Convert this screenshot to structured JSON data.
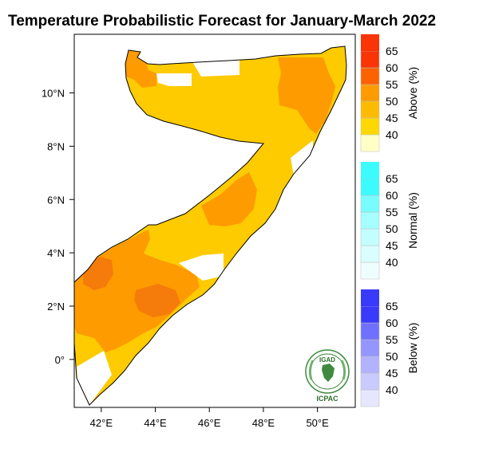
{
  "title": "Temperature Probabilistic Forecast for January-March 2022",
  "x_axis": {
    "ticks": [
      {
        "value": 42,
        "label": "42°E"
      },
      {
        "value": 44,
        "label": "44°E"
      },
      {
        "value": 46,
        "label": "46°E"
      },
      {
        "value": 48,
        "label": "48°E"
      },
      {
        "value": 50,
        "label": "50°E"
      }
    ],
    "range": [
      41.0,
      51.4
    ]
  },
  "y_axis": {
    "ticks": [
      {
        "value": 0,
        "label": "0°"
      },
      {
        "value": 2,
        "label": "2°N"
      },
      {
        "value": 4,
        "label": "4°N"
      },
      {
        "value": 6,
        "label": "6°N"
      },
      {
        "value": 8,
        "label": "8°N"
      },
      {
        "value": 10,
        "label": "10°N"
      }
    ],
    "range": [
      -1.8,
      12.2
    ]
  },
  "legend": {
    "scales": [
      {
        "title": "Above (%)",
        "labels": [
          "40",
          "45",
          "50",
          "55",
          "60",
          "65"
        ],
        "colors": [
          "#ffffc6",
          "#fed800",
          "#fdbb00",
          "#fd9b00",
          "#fc6200",
          "#f93406"
        ]
      },
      {
        "title": "Normal (%)",
        "labels": [
          "40",
          "45",
          "50",
          "55",
          "60",
          "65"
        ],
        "colors": [
          "#eefeff",
          "#dafeff",
          "#c3feff",
          "#a5feff",
          "#78fcff",
          "#3cfbfe"
        ]
      },
      {
        "title": "Below (%)",
        "labels": [
          "40",
          "45",
          "50",
          "55",
          "60",
          "65"
        ],
        "colors": [
          "#e6e6fe",
          "#cacafe",
          "#b2b2fe",
          "#9595fe",
          "#7070fe",
          "#3a3afb"
        ]
      }
    ]
  },
  "logo": {
    "top_text": "IGAD",
    "bottom_text": "ICPAC"
  },
  "colors": {
    "above_45": "#fdcb00",
    "above_50": "#fd9b00",
    "above_55": "#f57b0a"
  }
}
